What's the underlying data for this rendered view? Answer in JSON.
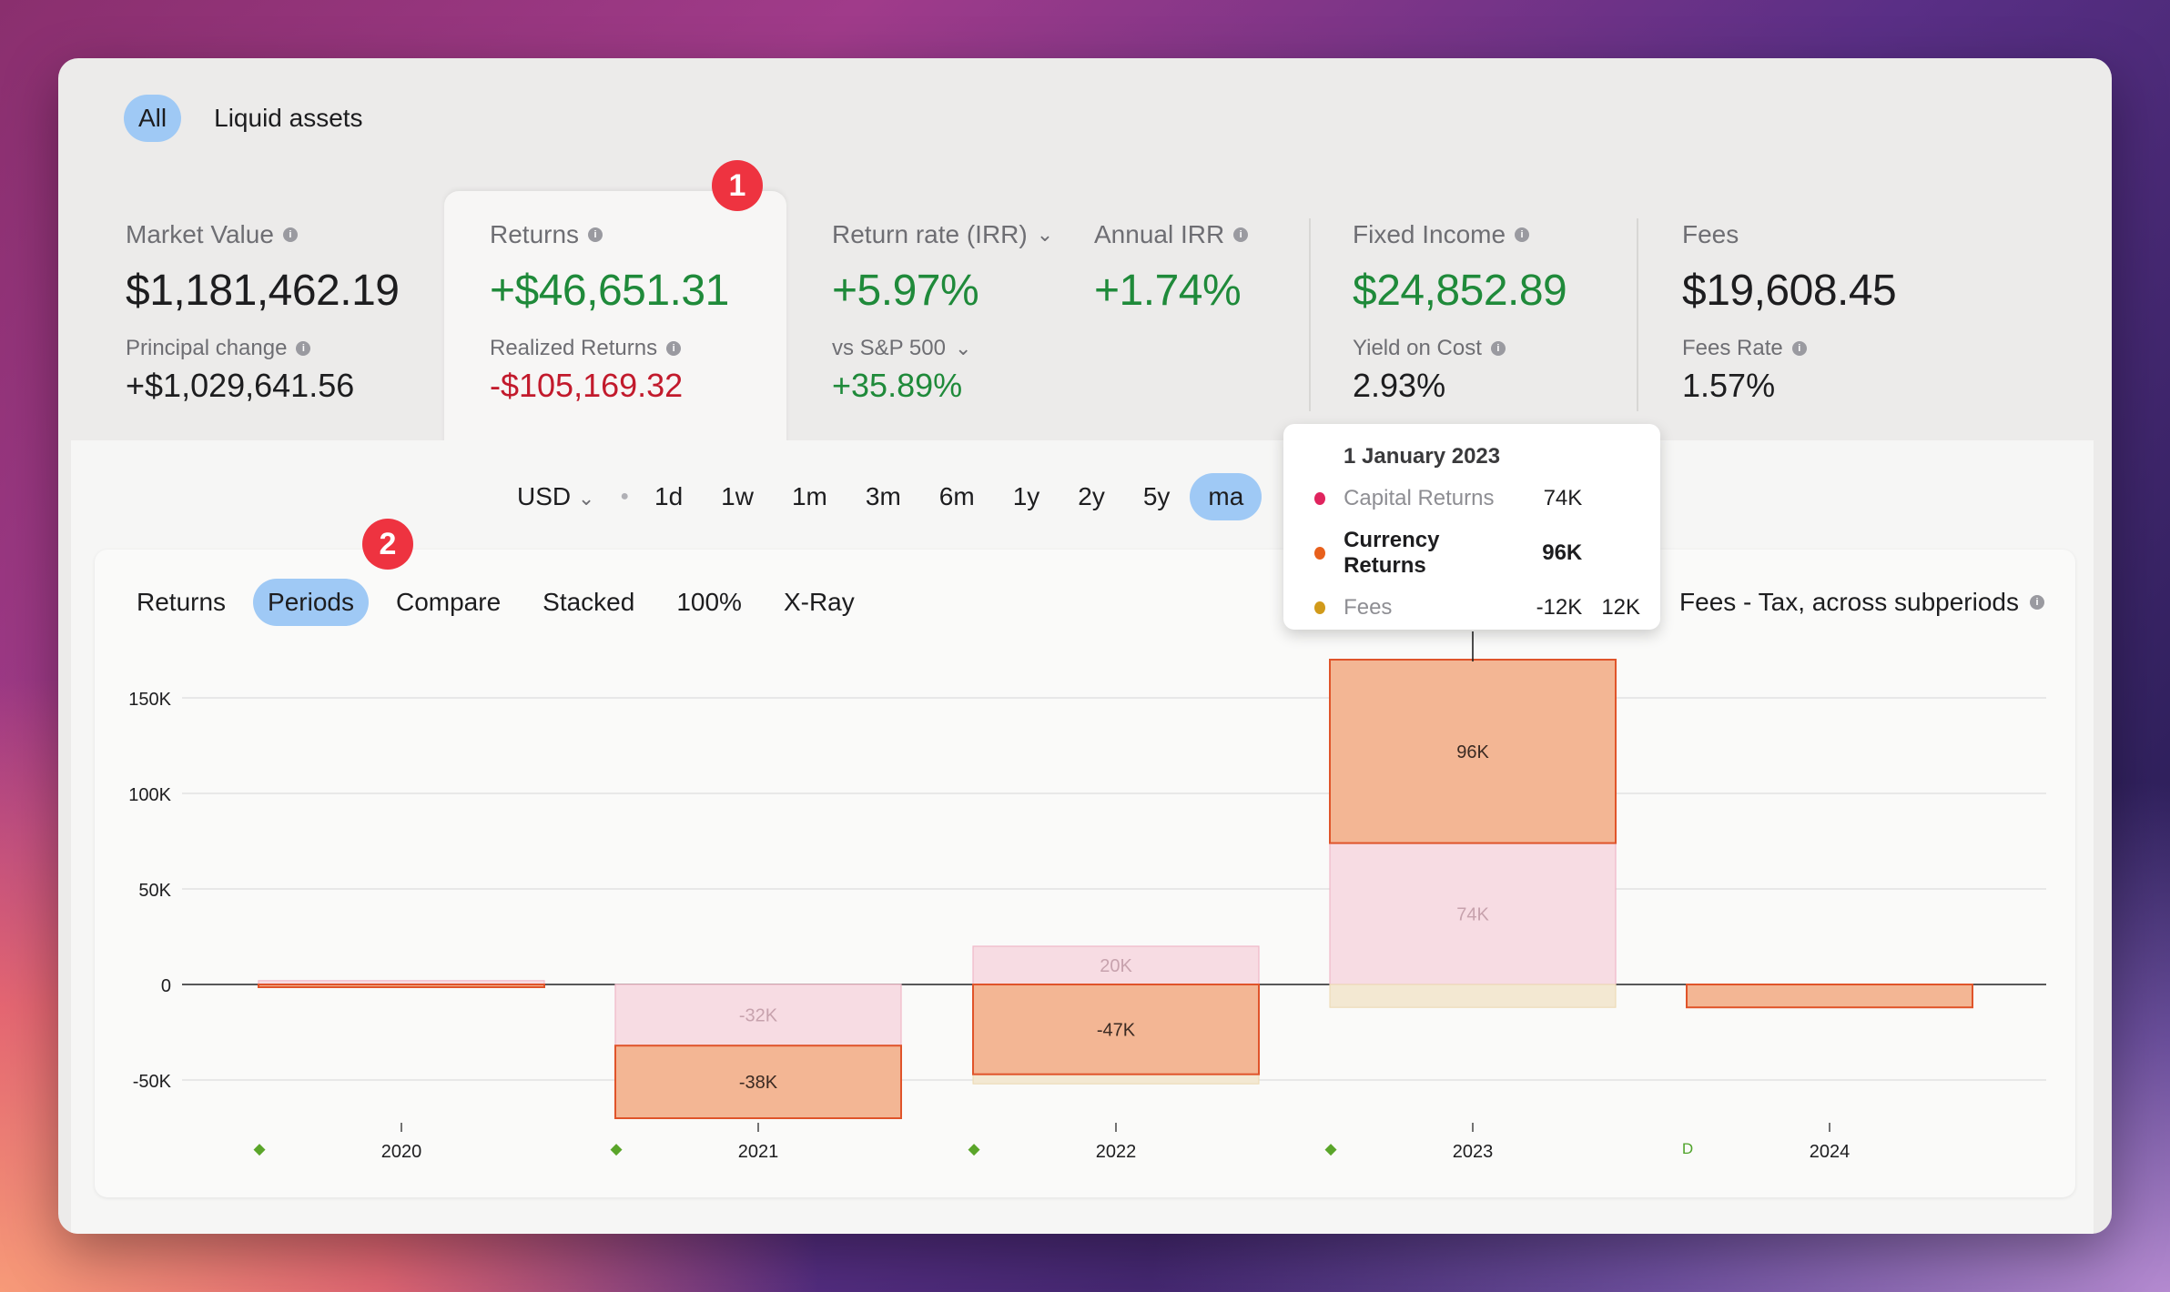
{
  "top_tabs": [
    {
      "label": "All",
      "active": true
    },
    {
      "label": "Liquid assets",
      "active": false
    }
  ],
  "metrics": {
    "market_value": {
      "label": "Market Value",
      "value": "$1,181,462.19",
      "sub_label": "Principal change",
      "sub_value": "+$1,029,641.56"
    },
    "returns": {
      "label": "Returns",
      "value": "+$46,651.31",
      "sub_label": "Realized Returns",
      "sub_value": "-$105,169.32"
    },
    "return_rate": {
      "label": "Return rate (IRR)",
      "value": "+5.97%",
      "sub_label": "vs S&P 500",
      "sub_value": "+35.89%"
    },
    "annual_irr": {
      "label": "Annual IRR",
      "value": "+1.74%"
    },
    "fixed_income": {
      "label": "Fixed Income",
      "value": "$24,852.89",
      "sub_label": "Yield on Cost",
      "sub_value": "2.93%"
    },
    "fees": {
      "label": "Fees",
      "value": "$19,608.45",
      "sub_label": "Fees Rate",
      "sub_value": "1.57%"
    }
  },
  "badges": {
    "one": "1",
    "two": "2"
  },
  "currency": "USD",
  "ranges": [
    {
      "label": "1d",
      "active": false
    },
    {
      "label": "1w",
      "active": false
    },
    {
      "label": "1m",
      "active": false
    },
    {
      "label": "3m",
      "active": false
    },
    {
      "label": "6m",
      "active": false
    },
    {
      "label": "1y",
      "active": false
    },
    {
      "label": "2y",
      "active": false
    },
    {
      "label": "5y",
      "active": false
    },
    {
      "label": "ma",
      "active": true
    }
  ],
  "chart_tabs": [
    {
      "label": "Returns",
      "active": false
    },
    {
      "label": "Periods",
      "active": true
    },
    {
      "label": "Compare",
      "active": false
    },
    {
      "label": "Stacked",
      "active": false
    },
    {
      "label": "100%",
      "active": false
    },
    {
      "label": "X-Ray",
      "active": false
    }
  ],
  "chart_right_label": "Fees - Tax, across subperiods",
  "tooltip": {
    "date": "1 January 2023",
    "rows": [
      {
        "name": "Capital Returns",
        "value": "74K",
        "extra": "",
        "color": "#e0245e",
        "emphasis": false
      },
      {
        "name": "Currency Returns",
        "value": "96K",
        "extra": "",
        "color": "#e8601c",
        "emphasis": true
      },
      {
        "name": "Fees",
        "value": "-12K",
        "extra": "12K",
        "color": "#d19a1a",
        "emphasis": false
      }
    ]
  },
  "colors": {
    "accent": "#9fc9f5",
    "positive": "#1f8a3a",
    "negative": "#c21a2c",
    "badge": "#ee3340",
    "currency_returns": "#f3b694",
    "capital_returns": "#f7dce3",
    "fees": "#f3e8d2"
  },
  "chart_data": {
    "type": "bar",
    "categories": [
      "2020",
      "2021",
      "2022",
      "2023",
      "2024"
    ],
    "markers": [
      "◆",
      "◆",
      "◆",
      "◆",
      "D"
    ],
    "y_ticks": [
      "150K",
      "100K",
      "50K",
      "0",
      "-50K"
    ],
    "y_tick_values": [
      150000,
      100000,
      50000,
      0,
      -50000
    ],
    "ylim": [
      -75000,
      170000
    ],
    "series": [
      {
        "name": "Capital Returns",
        "values": [
          2000,
          -32000,
          20000,
          74000,
          0
        ],
        "labels": [
          "",
          "-32K",
          "20K",
          "74K",
          ""
        ]
      },
      {
        "name": "Currency Returns",
        "values": [
          -1000,
          -38000,
          -47000,
          96000,
          -12000
        ],
        "labels": [
          "",
          "-38K",
          "-47K",
          "96K",
          ""
        ]
      },
      {
        "name": "Fees",
        "values": [
          0,
          -3000,
          -5000,
          -12000,
          0
        ],
        "labels": [
          "",
          "",
          "",
          "",
          ""
        ]
      }
    ]
  }
}
